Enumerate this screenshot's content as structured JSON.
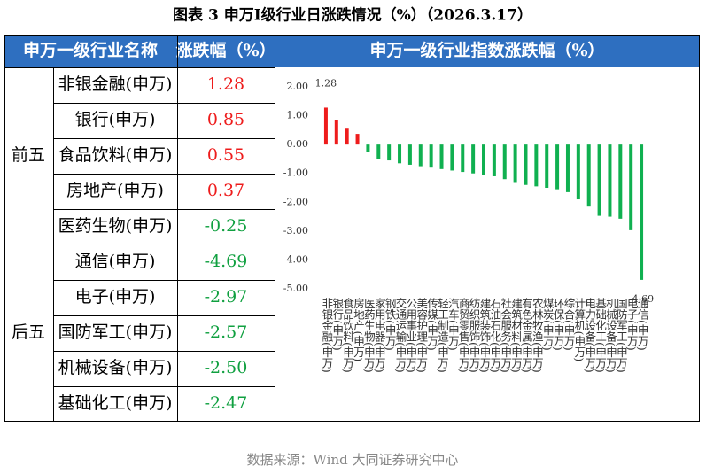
{
  "title": "图表 3    申万Ⅰ级行业日涨跌情况（%）（2026.3.17）",
  "table": {
    "headers": [
      "申万一级行业名称",
      "涨跌幅（%）"
    ],
    "up_color": "#ee1c1c",
    "down_color": "#10a040",
    "groups": [
      {
        "label": "前五",
        "rows": [
          [
            "非银金融(申万)",
            "1.28"
          ],
          [
            "银行(申万)",
            "0.85"
          ],
          [
            "食品饮料(申万)",
            "0.55"
          ],
          [
            "房地产(申万)",
            "0.37"
          ],
          [
            "医药生物(申万)",
            "-0.25"
          ]
        ]
      },
      {
        "label": "后五",
        "rows": [
          [
            "通信(申万)",
            "-4.69"
          ],
          [
            "电子(申万)",
            "-2.97"
          ],
          [
            "国防军工(申万)",
            "-2.57"
          ],
          [
            "机械设备(申万)",
            "-2.50"
          ],
          [
            "基础化工(申万)",
            "-2.47"
          ]
        ]
      }
    ]
  },
  "chart_data": {
    "type": "bar",
    "title": "申万一级行业指数涨跌幅（%）",
    "categories": [
      "非银金融(申万)",
      "银行(申万)",
      "食品饮料(申万)",
      "房地产(申万)",
      "医药生物(申万)",
      "家用电器(申万)",
      "钢铁(申万)",
      "交通运输(申万)",
      "公用事业(申万)",
      "美容护理(申万)",
      "传媒(申万)",
      "轻工制造(申万)",
      "汽车(申万)",
      "商贸零售(申万)",
      "纺织服饰(申万)",
      "建筑装饰(申万)",
      "石油石化(申万)",
      "社会服务(申万)",
      "建筑材料(申万)",
      "有色金属(申万)",
      "农林牧渔(申万)",
      "煤炭(申万)",
      "环保(申万)",
      "综合(申万)",
      "计算机(申万)",
      "电力设备(申万)",
      "基础化工(申万)",
      "机械设备(申万)",
      "国防军工(申万)",
      "电子(申万)",
      "通信(申万)"
    ],
    "values": [
      1.28,
      0.85,
      0.55,
      0.37,
      -0.25,
      -0.5,
      -0.55,
      -0.65,
      -0.7,
      -0.75,
      -0.8,
      -0.85,
      -0.9,
      -0.95,
      -1.0,
      -1.05,
      -1.1,
      -1.2,
      -1.3,
      -1.4,
      -1.45,
      -1.5,
      -1.55,
      -1.65,
      -1.9,
      -2.15,
      -2.47,
      -2.5,
      -2.57,
      -2.97,
      -4.69
    ],
    "value_labels": [
      "1.28",
      null,
      null,
      null,
      null,
      null,
      null,
      null,
      null,
      null,
      null,
      null,
      null,
      null,
      null,
      null,
      null,
      null,
      null,
      null,
      null,
      null,
      null,
      null,
      null,
      null,
      null,
      null,
      null,
      null,
      "-4.69"
    ],
    "positive_color": "#ee1c1c",
    "negative_color": "#10b050",
    "ylim": [
      -5,
      2
    ],
    "yticks": [
      {
        "value": 2,
        "label": "2.00"
      },
      {
        "value": 1,
        "label": "1.00"
      },
      {
        "value": 0,
        "label": "0.00"
      },
      {
        "value": -1,
        "label": "-1.00"
      },
      {
        "value": -2,
        "label": "-2.00"
      },
      {
        "value": -3,
        "label": "-3.00"
      },
      {
        "value": -4,
        "label": "-4.00"
      },
      {
        "value": -5,
        "label": "-5.00"
      }
    ],
    "grid": false
  },
  "source": "数据来源：Wind 大同证券研究中心"
}
